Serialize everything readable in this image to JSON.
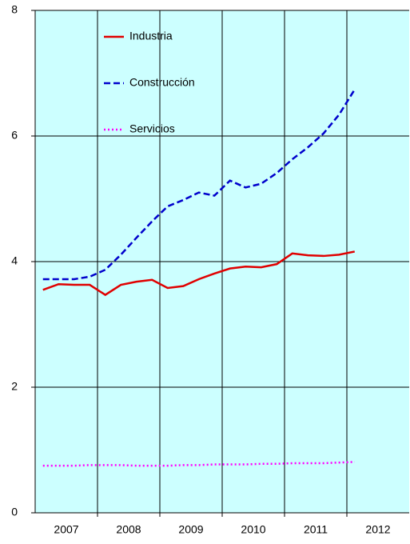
{
  "chart_data": {
    "type": "line",
    "x": [
      2007.125,
      2007.375,
      2007.625,
      2007.875,
      2008.125,
      2008.375,
      2008.625,
      2008.875,
      2009.125,
      2009.375,
      2009.625,
      2009.875,
      2010.125,
      2010.375,
      2010.625,
      2010.875,
      2011.125,
      2011.375,
      2011.625,
      2011.875,
      2012.125
    ],
    "series": [
      {
        "name": "Industria",
        "color": "#e00000",
        "dash": "solid",
        "values": [
          3.55,
          3.64,
          3.63,
          3.63,
          3.47,
          3.63,
          3.68,
          3.71,
          3.58,
          3.61,
          3.72,
          3.81,
          3.89,
          3.92,
          3.91,
          3.96,
          4.13,
          4.1,
          4.09,
          4.11,
          4.16
        ]
      },
      {
        "name": "Construcción",
        "color": "#0000cc",
        "dash": "dashed",
        "values": [
          3.72,
          3.72,
          3.72,
          3.76,
          3.87,
          4.11,
          4.38,
          4.64,
          4.88,
          4.98,
          5.1,
          5.05,
          5.29,
          5.18,
          5.24,
          5.41,
          5.63,
          5.82,
          6.04,
          6.34,
          6.74
        ]
      },
      {
        "name": "Servicios",
        "color": "#ff00ff",
        "dash": "dotted",
        "values": [
          0.75,
          0.75,
          0.75,
          0.76,
          0.76,
          0.76,
          0.75,
          0.75,
          0.75,
          0.76,
          0.76,
          0.77,
          0.77,
          0.77,
          0.78,
          0.78,
          0.79,
          0.79,
          0.79,
          0.8,
          0.81
        ]
      }
    ],
    "xlim": [
      2007,
      2013
    ],
    "xticks": [
      {
        "value": 2007.5,
        "label": "2007"
      },
      {
        "value": 2008.5,
        "label": "2008"
      },
      {
        "value": 2009.5,
        "label": "2009"
      },
      {
        "value": 2010.5,
        "label": "2010"
      },
      {
        "value": 2011.5,
        "label": "2011"
      },
      {
        "value": 2012.5,
        "label": "2012"
      }
    ],
    "xgrid": [
      2008,
      2009,
      2010,
      2011,
      2012
    ],
    "ylim": [
      0,
      8
    ],
    "yticks": [
      0,
      2,
      4,
      6,
      8
    ],
    "grid": true,
    "background": "#ccffff",
    "legend": "top-left"
  }
}
